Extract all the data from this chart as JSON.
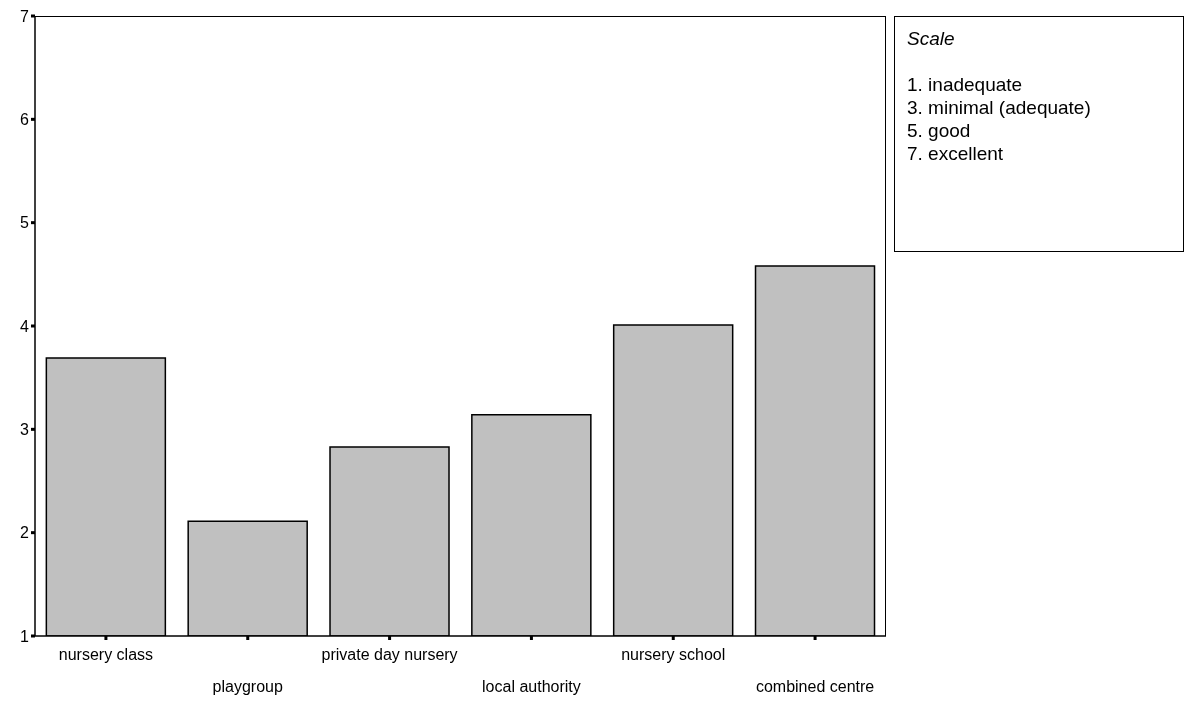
{
  "chart_data": {
    "type": "bar",
    "categories": [
      "nursery class",
      "playgroup",
      "private day nursery",
      "local authority",
      "nursery school",
      "combined centre"
    ],
    "values": [
      3.69,
      2.11,
      2.83,
      3.14,
      4.01,
      4.58
    ],
    "color": "#c0c0c0",
    "ylim": [
      1,
      7
    ],
    "yticks": [
      1,
      2,
      3,
      4,
      5,
      6,
      7
    ],
    "annotations": [
      "Scale",
      "1.  inadequate",
      "3.  minimal (adequate)",
      "5.  good",
      "7.  excellent"
    ]
  }
}
